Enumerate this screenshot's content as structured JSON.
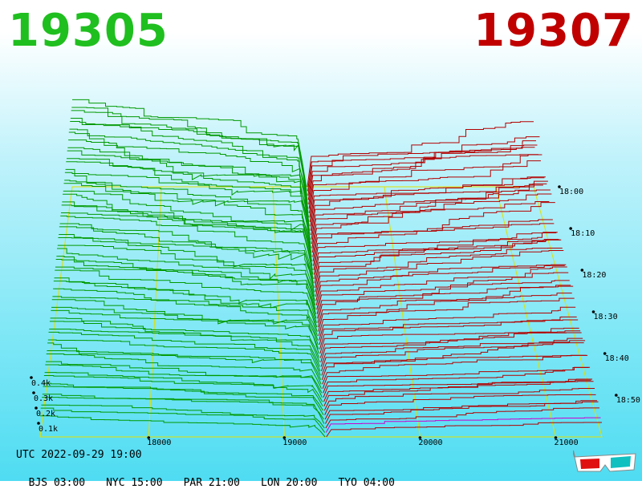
{
  "header": {
    "bid_price": "19305",
    "ask_price": "19307"
  },
  "chart_data": {
    "type": "3d-depth-waterfall",
    "x_axis_ticks": [
      "18000",
      "19000",
      "20000",
      "21000"
    ],
    "x_tick_values": [
      18000,
      19000,
      20000,
      21000
    ],
    "x_range": [
      17200,
      21340
    ],
    "center_price": 19305,
    "volume_ticks": [
      "0.1k",
      "0.2k",
      "0.3k",
      "0.4k"
    ],
    "volume_tick_values": [
      100,
      200,
      300,
      400
    ],
    "time_ticks": [
      "18:00",
      "18:10",
      "18:20",
      "18:30",
      "18:40",
      "18:50"
    ],
    "time_range_minutes": [
      0,
      60
    ],
    "bid_color": "#009900",
    "ask_color": "#b30000",
    "latest_ask_color": "#cc00cc",
    "grid_color": "#e0e000",
    "grid": true,
    "legend": "none"
  },
  "footer": {
    "utc": "UTC 2022-09-29 19:00",
    "zones": [
      "BJS 03:00",
      "NYC 15:00",
      "PAR 21:00",
      "LON 20:00",
      "TYO 04:00"
    ]
  },
  "icons": {
    "glasses": "3d-glasses-icon"
  }
}
